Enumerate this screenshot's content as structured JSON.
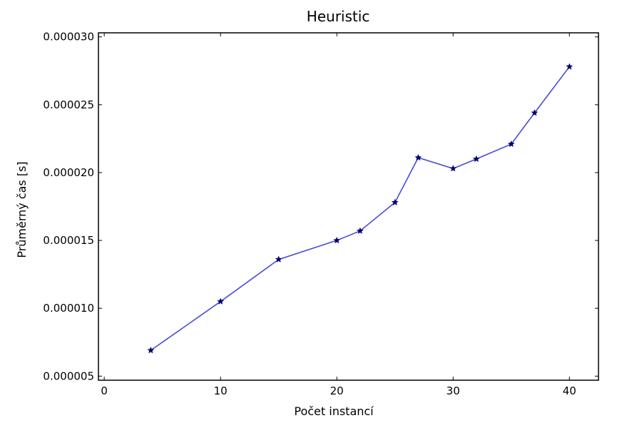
{
  "chart_data": {
    "type": "line",
    "title": "Heuristic",
    "xlabel": "Počet instancí",
    "ylabel": "Průměrný čas [s]",
    "xlim": [
      -0.5,
      42.5
    ],
    "ylim": [
      4.7e-06,
      3.03e-05
    ],
    "xticks": [
      0,
      10,
      20,
      30,
      40
    ],
    "xtick_labels": [
      "0",
      "10",
      "20",
      "30",
      "40"
    ],
    "yticks": [
      5e-06,
      1e-05,
      1.5e-05,
      2e-05,
      2.5e-05,
      3e-05
    ],
    "ytick_labels": [
      "0.000005",
      "0.000010",
      "0.000015",
      "0.000020",
      "0.000025",
      "0.000030"
    ],
    "grid": false,
    "series": [
      {
        "marker": "star",
        "color": "#4a4ad8",
        "marker_color": "#000070",
        "x": [
          4,
          10,
          15,
          20,
          22,
          25,
          27,
          30,
          32,
          35,
          37,
          40
        ],
        "y": [
          6.9e-06,
          1.05e-05,
          1.36e-05,
          1.5e-05,
          1.57e-05,
          1.78e-05,
          2.11e-05,
          2.03e-05,
          2.1e-05,
          2.21e-05,
          2.44e-05,
          2.78e-05
        ]
      }
    ]
  }
}
